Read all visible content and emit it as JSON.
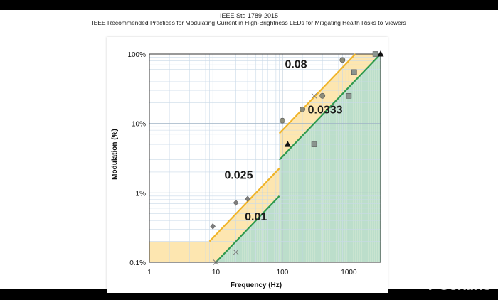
{
  "title_line1": "IEEE Std 1789-2015",
  "title_line2": "IEEE Recommended Practices for Modulating Current in High-Brightness LEDs for Mitigating Health Risks to Viewers",
  "watermark": "PConline",
  "colors": {
    "orange_line": "#f0b429",
    "orange_fill": "#fde6b0",
    "green_line": "#2e9a4e",
    "green_fill": "#bfe3d6",
    "grid": "#c9d9e8",
    "marker_gray": "#8a8a8a"
  },
  "chart_data": {
    "type": "line",
    "title": "",
    "xlabel": "Frequency (Hz)",
    "ylabel": "Modulation (%)",
    "x_scale": "log",
    "y_scale": "log",
    "xlim": [
      1,
      3000
    ],
    "ylim": [
      0.1,
      100
    ],
    "x_ticks": [
      {
        "value": 1,
        "label": "1"
      },
      {
        "value": 10,
        "label": "10"
      },
      {
        "value": 100,
        "label": "100"
      },
      {
        "value": 1000,
        "label": "1000"
      }
    ],
    "y_ticks": [
      {
        "value": 0.1,
        "label": "0.1%"
      },
      {
        "value": 1,
        "label": "1%"
      },
      {
        "value": 10,
        "label": "10%"
      },
      {
        "value": 100,
        "label": "100%"
      }
    ],
    "grid": true,
    "regions": [
      {
        "name": "orange",
        "points": [
          [
            1,
            0.1
          ],
          [
            1,
            0.2
          ],
          [
            8,
            0.2
          ],
          [
            90,
            2.25
          ],
          [
            90,
            7.2
          ],
          [
            1250,
            100
          ],
          [
            3000,
            100
          ],
          [
            3000,
            0.1
          ]
        ]
      },
      {
        "name": "green",
        "points": [
          [
            10,
            0.1
          ],
          [
            90,
            0.9
          ],
          [
            90,
            3
          ],
          [
            3000,
            100
          ],
          [
            3000,
            0.1
          ]
        ]
      }
    ],
    "series": [
      {
        "name": "0.025",
        "segments": [
          [
            [
              8,
              0.2
            ],
            [
              90,
              2.25
            ]
          ]
        ]
      },
      {
        "name": "0.08",
        "segments": [
          [
            [
              90,
              7.2
            ],
            [
              1250,
              100
            ]
          ]
        ]
      },
      {
        "name": "0.01",
        "segments": [
          [
            [
              10,
              0.1
            ],
            [
              90,
              0.9
            ]
          ]
        ]
      },
      {
        "name": "0.0333",
        "segments": [
          [
            [
              90,
              3
            ],
            [
              3000,
              100
            ]
          ]
        ]
      }
    ],
    "annotations": [
      {
        "text": "0.08",
        "x": 160,
        "y": 63
      },
      {
        "text": "0.0333",
        "x": 440,
        "y": 14
      },
      {
        "text": "0.025",
        "x": 22,
        "y": 1.6
      },
      {
        "text": "0.01",
        "x": 40,
        "y": 0.4
      }
    ],
    "markers": [
      {
        "shape": "diamond",
        "x": 9,
        "y": 0.33
      },
      {
        "shape": "diamond",
        "x": 20,
        "y": 0.72
      },
      {
        "shape": "diamond",
        "x": 30,
        "y": 0.82
      },
      {
        "shape": "x",
        "x": 10,
        "y": 0.1
      },
      {
        "shape": "x",
        "x": 20,
        "y": 0.14
      },
      {
        "shape": "circle",
        "x": 100,
        "y": 11
      },
      {
        "shape": "circle",
        "x": 200,
        "y": 16
      },
      {
        "shape": "circle",
        "x": 400,
        "y": 25
      },
      {
        "shape": "circle",
        "x": 800,
        "y": 82
      },
      {
        "shape": "triangle",
        "x": 120,
        "y": 5
      },
      {
        "shape": "triangle",
        "x": 3000,
        "y": 100
      },
      {
        "shape": "square",
        "x": 300,
        "y": 5
      },
      {
        "shape": "square",
        "x": 1000,
        "y": 25
      },
      {
        "shape": "square",
        "x": 1200,
        "y": 55
      },
      {
        "shape": "square",
        "x": 2500,
        "y": 100
      },
      {
        "shape": "x",
        "x": 300,
        "y": 25
      }
    ]
  }
}
